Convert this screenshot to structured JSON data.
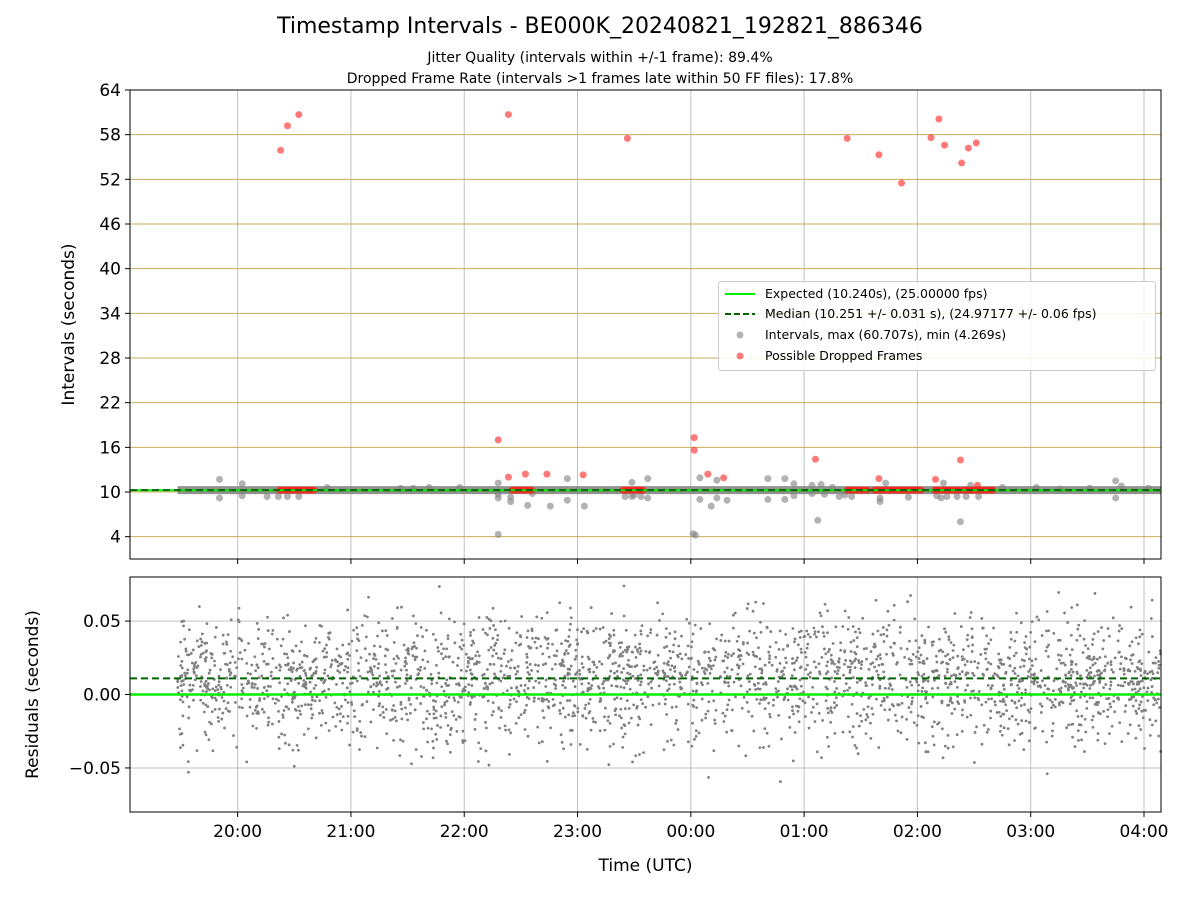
{
  "figure": {
    "title": "Timestamp Intervals - BE000K_20240821_192821_886346",
    "subtitle1": "Jitter Quality (intervals within +/-1 frame): 89.4%",
    "subtitle2": "Dropped Frame Rate (intervals >1 frames late within 50 FF files): 17.8%"
  },
  "legend": {
    "expected": "Expected (10.240s), (25.00000 fps)",
    "median": "Median (10.251 +/- 0.031 s), (24.97177 +/- 0.06 fps)",
    "intervals": "Intervals, max (60.707s), min (4.269s)",
    "dropped": "Possible Dropped Frames"
  },
  "colors": {
    "expected": "#00ee00",
    "median": "#006400",
    "intervals": "#808080",
    "dropped": "#ff2020",
    "hgrid_top": "#c8ad5a",
    "grid": "#c0c0c0"
  },
  "chart_data": [
    {
      "type": "scatter",
      "panel": "intervals",
      "xlabel": "",
      "ylabel": "Intervals (seconds)",
      "x_axis": "time (UTC, hours after 20:00)",
      "xlim": [
        -0.95,
        8.15
      ],
      "ylim": [
        1.0,
        64
      ],
      "y_ticks": [
        4,
        10,
        16,
        22,
        28,
        34,
        40,
        46,
        52,
        58,
        64
      ],
      "x_tick_values": [
        0,
        1,
        2,
        3,
        4,
        5,
        6,
        7,
        8
      ],
      "x_tick_labels": [
        "20:00",
        "21:00",
        "22:00",
        "23:00",
        "00:00",
        "01:00",
        "02:00",
        "03:00",
        "04:00"
      ],
      "grid": "on",
      "legend_position": "center-right",
      "data_start_time": -0.53,
      "expected_value": 10.24,
      "median_value": 10.251,
      "series": [
        {
          "name": "Intervals, max (60.707s), min (4.269s)",
          "points": [
            [
              -0.16,
              11.7
            ],
            [
              -0.16,
              9.2
            ],
            [
              0.04,
              11.1
            ],
            [
              0.04,
              9.5
            ],
            [
              0.26,
              9.4
            ],
            [
              0.36,
              9.4
            ],
            [
              0.44,
              9.4
            ],
            [
              0.54,
              9.4
            ],
            [
              0.79,
              10.6
            ],
            [
              1.44,
              10.5
            ],
            [
              1.55,
              10.5
            ],
            [
              1.69,
              10.6
            ],
            [
              1.96,
              10.6
            ],
            [
              2.3,
              4.3
            ],
            [
              2.3,
              11.2
            ],
            [
              2.3,
              9.7
            ],
            [
              2.3,
              9.2
            ],
            [
              2.41,
              8.7
            ],
            [
              2.41,
              9.3
            ],
            [
              2.56,
              8.2
            ],
            [
              2.6,
              9.8
            ],
            [
              2.76,
              8.1
            ],
            [
              2.91,
              8.9
            ],
            [
              2.91,
              11.8
            ],
            [
              3.06,
              8.1
            ],
            [
              3.42,
              9.4
            ],
            [
              3.48,
              11.3
            ],
            [
              3.48,
              9.4
            ],
            [
              3.5,
              9.6
            ],
            [
              3.56,
              9.4
            ],
            [
              3.62,
              11.8
            ],
            [
              3.62,
              9.2
            ],
            [
              4.02,
              4.4
            ],
            [
              4.04,
              4.2
            ],
            [
              4.08,
              11.9
            ],
            [
              4.08,
              9.0
            ],
            [
              4.18,
              8.1
            ],
            [
              4.23,
              9.2
            ],
            [
              4.23,
              11.6
            ],
            [
              4.32,
              8.9
            ],
            [
              4.68,
              9.0
            ],
            [
              4.68,
              11.8
            ],
            [
              4.83,
              9.0
            ],
            [
              4.83,
              11.8
            ],
            [
              4.91,
              9.5
            ],
            [
              4.91,
              11.1
            ],
            [
              5.07,
              10.9
            ],
            [
              5.07,
              9.8
            ],
            [
              5.12,
              6.2
            ],
            [
              5.15,
              11.0
            ],
            [
              5.18,
              9.7
            ],
            [
              5.25,
              10.6
            ],
            [
              5.31,
              9.4
            ],
            [
              5.36,
              9.6
            ],
            [
              5.42,
              9.4
            ],
            [
              5.67,
              8.7
            ],
            [
              5.67,
              9.2
            ],
            [
              5.72,
              11.2
            ],
            [
              5.92,
              9.3
            ],
            [
              6.17,
              9.5
            ],
            [
              6.21,
              9.2
            ],
            [
              6.23,
              11.2
            ],
            [
              6.26,
              9.4
            ],
            [
              6.35,
              9.4
            ],
            [
              6.38,
              6.0
            ],
            [
              6.43,
              9.4
            ],
            [
              6.47,
              10.9
            ],
            [
              6.54,
              9.4
            ],
            [
              6.75,
              10.6
            ],
            [
              7.05,
              10.6
            ],
            [
              7.26,
              10.4
            ],
            [
              7.52,
              10.5
            ],
            [
              7.75,
              11.5
            ],
            [
              7.75,
              9.2
            ],
            [
              7.8,
              10.8
            ],
            [
              8.04,
              10.5
            ]
          ]
        },
        {
          "name": "Possible Dropped Frames",
          "points": [
            [
              0.38,
              55.9
            ],
            [
              0.44,
              59.2
            ],
            [
              0.54,
              60.7
            ],
            [
              2.3,
              17.0
            ],
            [
              2.39,
              60.7
            ],
            [
              2.39,
              12.0
            ],
            [
              2.54,
              12.4
            ],
            [
              2.73,
              12.4
            ],
            [
              3.05,
              12.3
            ],
            [
              3.44,
              57.5
            ],
            [
              4.03,
              17.3
            ],
            [
              4.03,
              15.6
            ],
            [
              4.15,
              12.4
            ],
            [
              4.29,
              11.9
            ],
            [
              5.1,
              14.4
            ],
            [
              5.38,
              57.5
            ],
            [
              5.66,
              55.3
            ],
            [
              5.66,
              11.8
            ],
            [
              5.86,
              51.5
            ],
            [
              6.12,
              57.6
            ],
            [
              6.16,
              11.7
            ],
            [
              6.19,
              60.1
            ],
            [
              6.24,
              56.6
            ],
            [
              6.39,
              54.2
            ],
            [
              6.45,
              56.2
            ],
            [
              6.52,
              56.9
            ],
            [
              6.38,
              14.3
            ],
            [
              6.53,
              10.9
            ]
          ],
          "clusters_at_median": [
            [
              0.37,
              0.68
            ],
            [
              2.42,
              2.6
            ],
            [
              3.4,
              3.58
            ],
            [
              5.38,
              5.56
            ],
            [
              5.62,
              6.05
            ],
            [
              6.15,
              6.38
            ],
            [
              6.4,
              6.68
            ]
          ]
        }
      ]
    },
    {
      "type": "scatter",
      "panel": "residuals",
      "xlabel": "Time (UTC)",
      "ylabel": "Residuals (seconds)",
      "x_axis": "time (UTC, hours after 20:00)",
      "xlim": [
        -0.95,
        8.15
      ],
      "ylim": [
        -0.08,
        0.08
      ],
      "y_ticks": [
        -0.05,
        0.0,
        0.05
      ],
      "y_tick_labels": [
        "−0.05",
        "0.00",
        "0.05"
      ],
      "x_tick_values": [
        0,
        1,
        2,
        3,
        4,
        5,
        6,
        7,
        8
      ],
      "x_tick_labels": [
        "20:00",
        "21:00",
        "22:00",
        "23:00",
        "00:00",
        "01:00",
        "02:00",
        "03:00",
        "04:00"
      ],
      "grid": "on",
      "expected_value": 0.0,
      "median_value": 0.011,
      "series": [
        {
          "name": "",
          "n_points": 2700,
          "x_range": [
            -0.53,
            8.15
          ],
          "y_mean": 0.011,
          "y_std": 0.022
        }
      ]
    }
  ]
}
